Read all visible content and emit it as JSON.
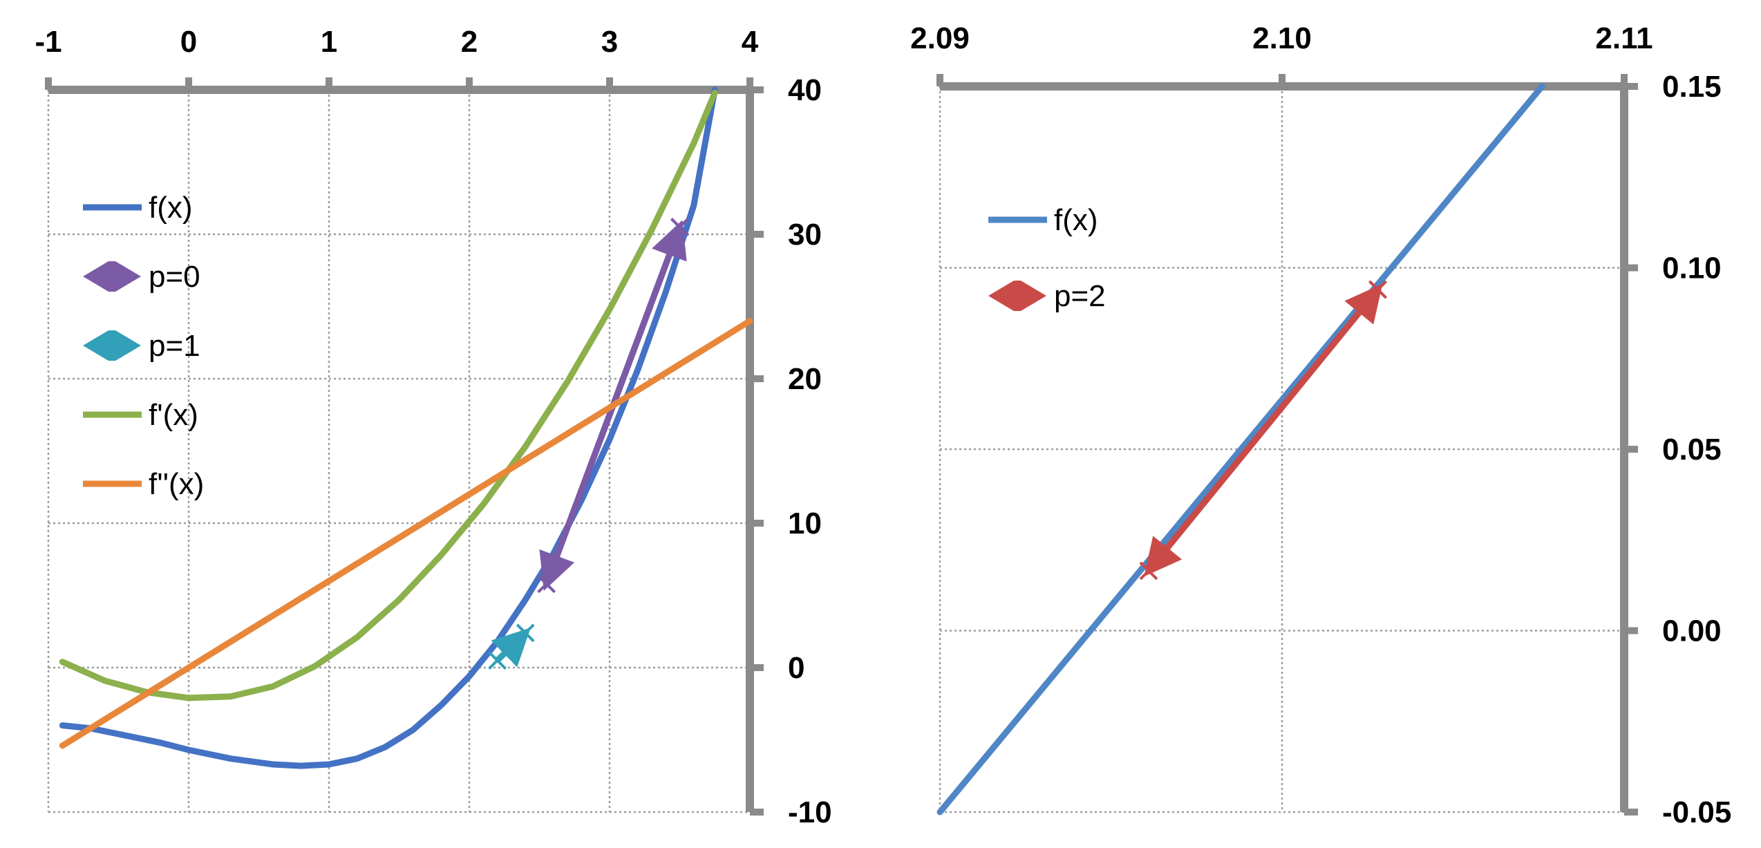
{
  "chart_data": [
    {
      "type": "line",
      "title": "",
      "xlabel": "",
      "ylabel": "",
      "xlim": [
        -1,
        4
      ],
      "ylim": [
        -10,
        40
      ],
      "x_ticks": [
        "-1",
        "0",
        "1",
        "2",
        "3",
        "4"
      ],
      "y_ticks": [
        "-10",
        "0",
        "10",
        "20",
        "30",
        "40"
      ],
      "grid": true,
      "x_axis_position": "top",
      "y_axis_position": "right",
      "legend_position": "upper-left",
      "series": [
        {
          "name": "f(x)",
          "color": "#4472C4",
          "kind": "curve",
          "points": [
            [
              -0.9,
              -4
            ],
            [
              -0.7,
              -4.2
            ],
            [
              -0.5,
              -4.6
            ],
            [
              -0.2,
              -5.2
            ],
            [
              0,
              -5.7
            ],
            [
              0.3,
              -6.3
            ],
            [
              0.6,
              -6.7
            ],
            [
              0.8,
              -6.8
            ],
            [
              1.0,
              -6.7
            ],
            [
              1.2,
              -6.3
            ],
            [
              1.4,
              -5.5
            ],
            [
              1.6,
              -4.3
            ],
            [
              1.8,
              -2.6
            ],
            [
              2.0,
              -0.6
            ],
            [
              2.2,
              1.8
            ],
            [
              2.4,
              4.7
            ],
            [
              2.6,
              7.9
            ],
            [
              2.8,
              11.6
            ],
            [
              3.0,
              15.8
            ],
            [
              3.2,
              20.6
            ],
            [
              3.4,
              26
            ],
            [
              3.6,
              32
            ],
            [
              3.75,
              40
            ]
          ]
        },
        {
          "name": "p=0",
          "color": "#7B5AA6",
          "kind": "arrows",
          "points": [
            [
              3.5,
              30.5
            ],
            [
              2.55,
              5.8
            ],
            [
              3.5,
              30.5
            ]
          ]
        },
        {
          "name": "p=1",
          "color": "#31A0B8",
          "kind": "arrows",
          "points": [
            [
              2.2,
              0.5
            ],
            [
              2.4,
              2.4
            ]
          ]
        },
        {
          "name": "f'(x)",
          "color": "#8CB04C",
          "kind": "curve",
          "points": [
            [
              -0.9,
              0.4
            ],
            [
              -0.6,
              -0.9
            ],
            [
              -0.3,
              -1.7
            ],
            [
              0,
              -2.1
            ],
            [
              0.3,
              -2
            ],
            [
              0.6,
              -1.3
            ],
            [
              0.9,
              0.1
            ],
            [
              1.2,
              2.1
            ],
            [
              1.5,
              4.7
            ],
            [
              1.8,
              7.8
            ],
            [
              2.1,
              11.3
            ],
            [
              2.4,
              15.3
            ],
            [
              2.7,
              19.8
            ],
            [
              3.0,
              24.8
            ],
            [
              3.3,
              30.3
            ],
            [
              3.6,
              36.3
            ],
            [
              3.75,
              39.8
            ]
          ]
        },
        {
          "name": "f''(x)",
          "color": "#E8873A",
          "kind": "curve",
          "points": [
            [
              -0.9,
              -5.4
            ],
            [
              4,
              24
            ]
          ]
        }
      ]
    },
    {
      "type": "line",
      "title": "",
      "xlabel": "",
      "ylabel": "",
      "xlim": [
        2.09,
        2.11
      ],
      "ylim": [
        -0.05,
        0.15
      ],
      "x_ticks": [
        "2.09",
        "2.10",
        "2.11"
      ],
      "y_ticks": [
        "-0.05",
        "0.00",
        "0.05",
        "0.10",
        "0.15"
      ],
      "grid": true,
      "x_axis_position": "top",
      "y_axis_position": "right",
      "legend_position": "upper-left",
      "series": [
        {
          "name": "f(x)",
          "color": "#4F86C6",
          "kind": "curve",
          "points": [
            [
              2.09,
              -0.05
            ],
            [
              2.1076,
              0.15
            ]
          ]
        },
        {
          "name": "p=2",
          "color": "#C94A47",
          "kind": "arrows",
          "points": [
            [
              2.1028,
              0.094
            ],
            [
              2.0961,
              0.0165
            ],
            [
              2.1028,
              0.094
            ]
          ]
        }
      ]
    }
  ]
}
